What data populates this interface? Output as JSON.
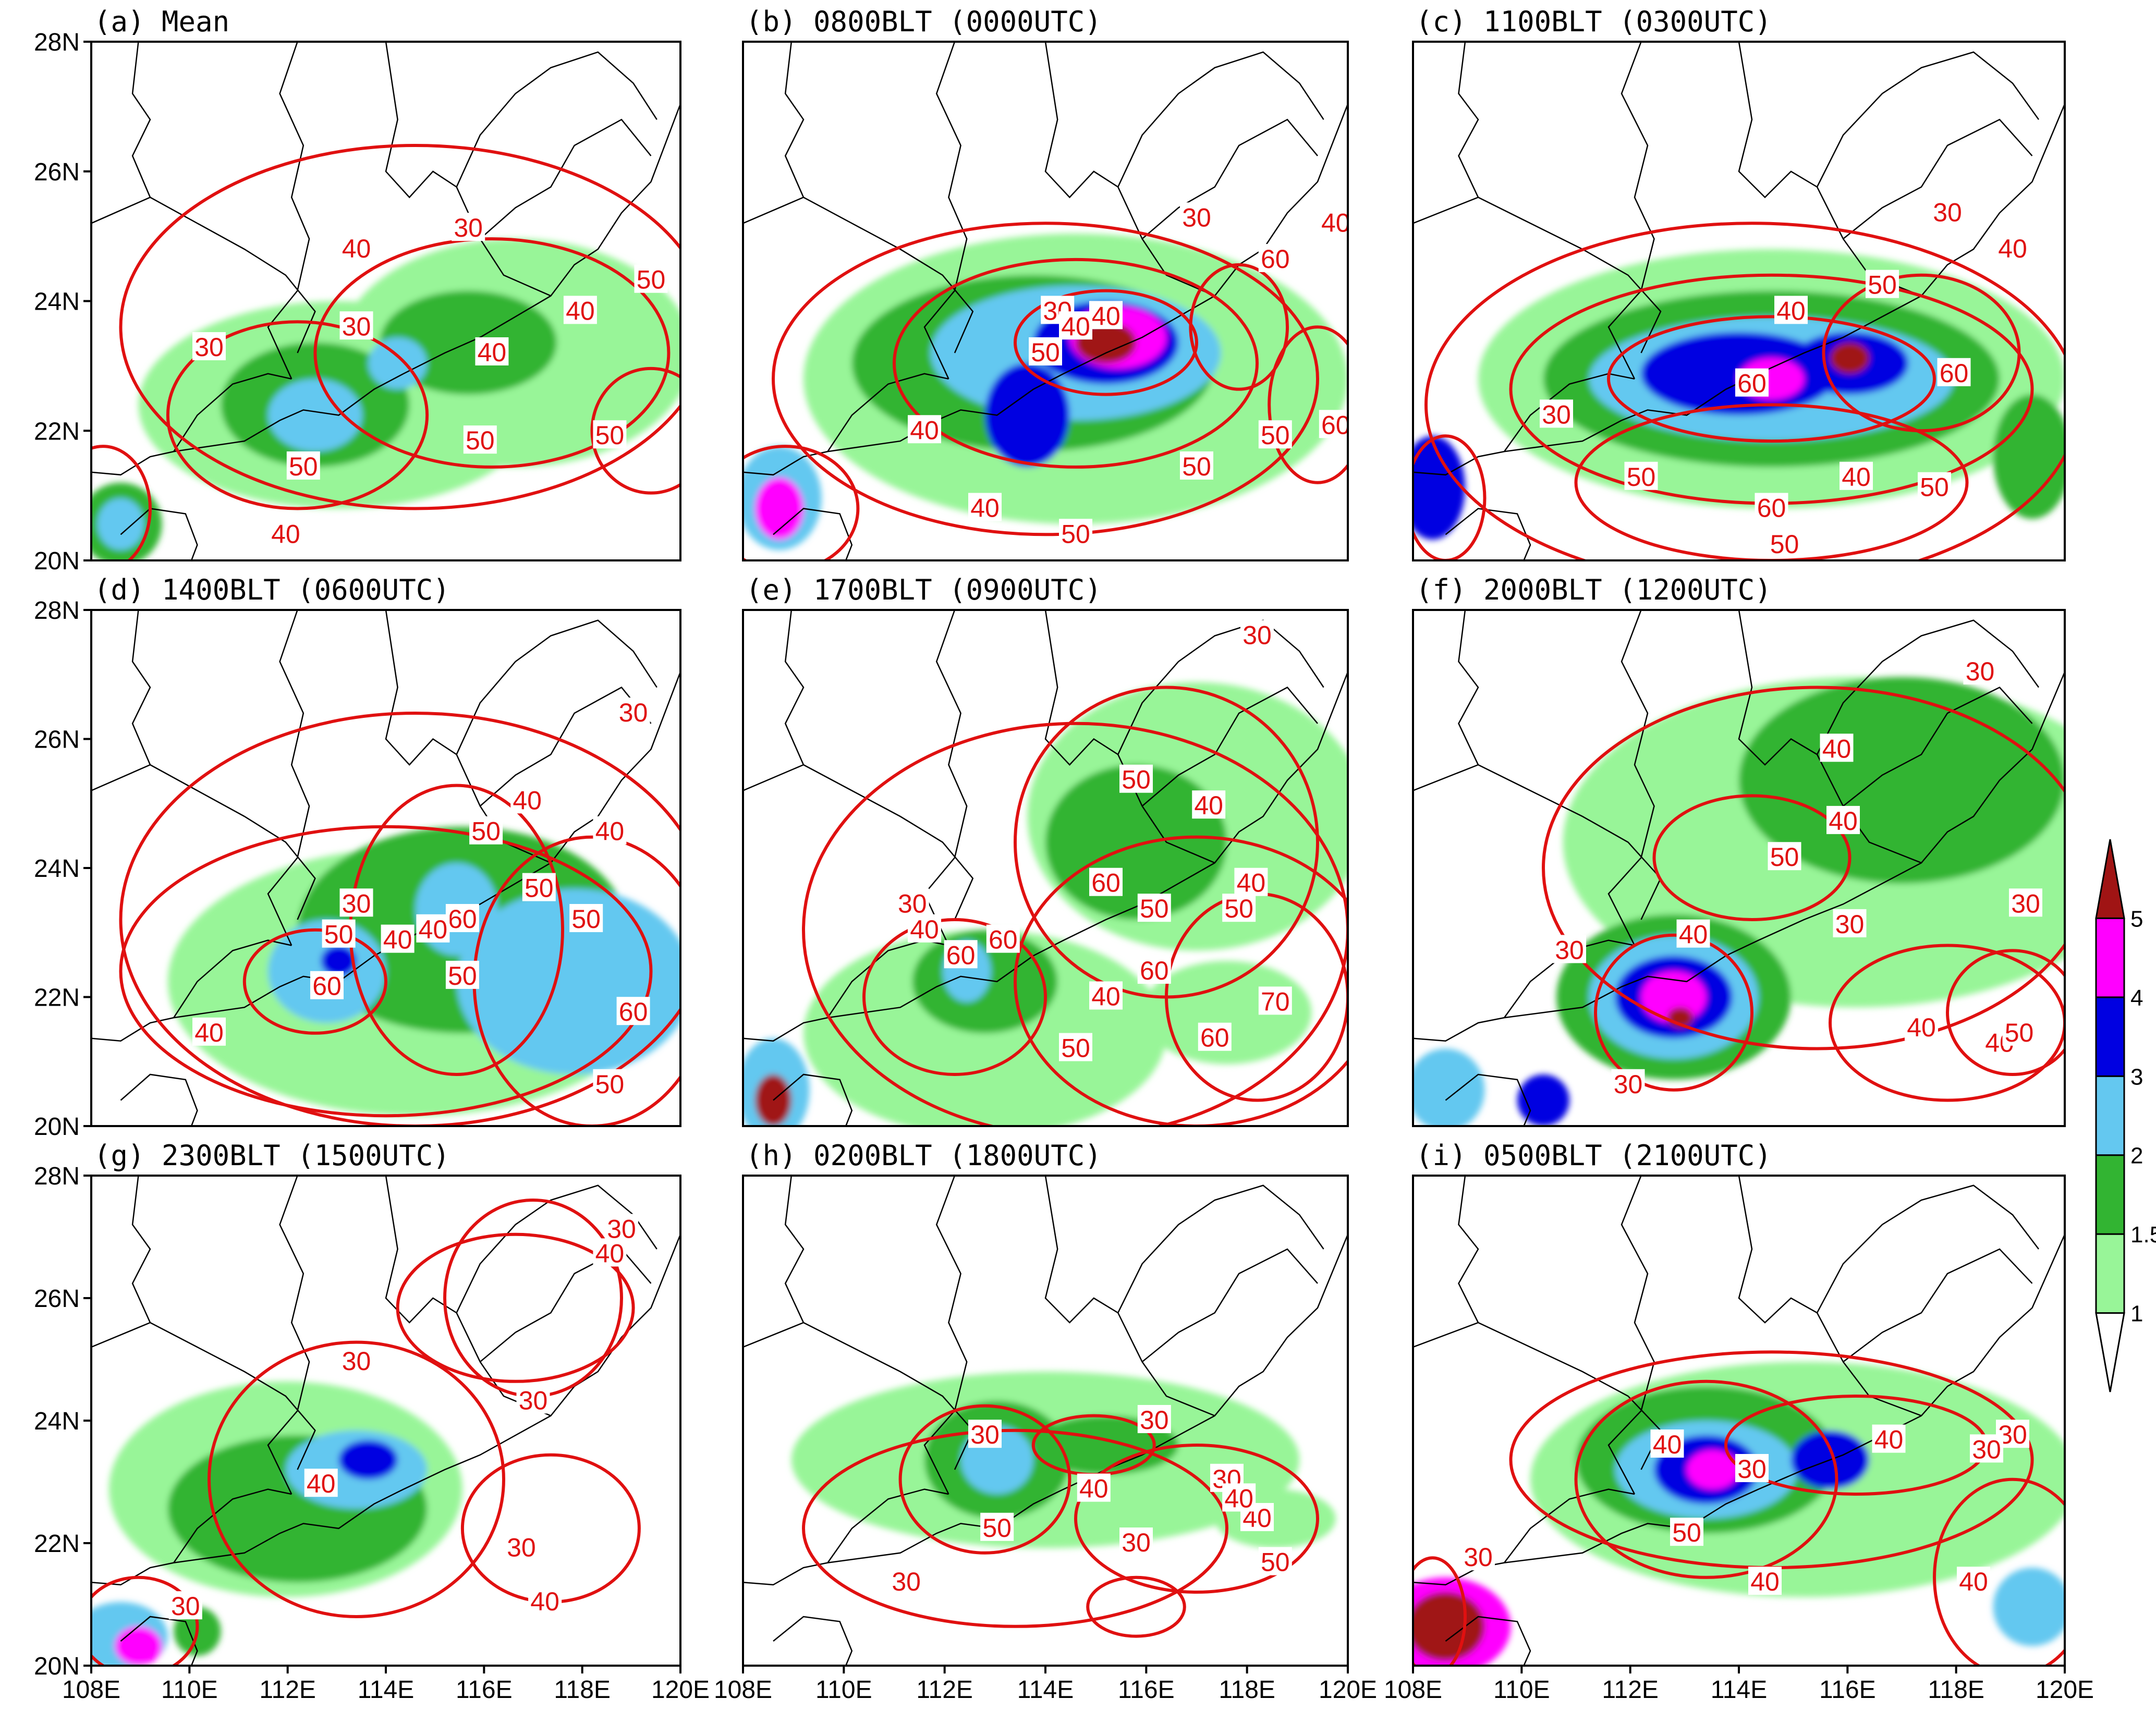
{
  "panels": [
    {
      "title": "(a) Mean",
      "labels": [
        "30",
        "30",
        "30",
        "40",
        "40",
        "40",
        "40",
        "50",
        "50",
        "50",
        "50"
      ]
    },
    {
      "title": "(b) 0800BLT (0000UTC)",
      "labels": [
        "30",
        "30",
        "40",
        "40",
        "40",
        "50",
        "50",
        "60",
        "50",
        "60",
        "40",
        "50",
        "40"
      ]
    },
    {
      "title": "(c) 1100BLT (0300UTC)",
      "labels": [
        "30",
        "30",
        "40",
        "40",
        "50",
        "50",
        "60",
        "60",
        "40",
        "50",
        "60",
        "50"
      ]
    },
    {
      "title": "(d) 1400BLT (0600UTC)",
      "labels": [
        "30",
        "30",
        "40",
        "40",
        "40",
        "40",
        "50",
        "50",
        "50",
        "60",
        "60",
        "50",
        "50",
        "60",
        "40",
        "50"
      ]
    },
    {
      "title": "(e) 1700BLT (0900UTC)",
      "labels": [
        "30",
        "30",
        "40",
        "40",
        "50",
        "60",
        "40",
        "60",
        "50",
        "60",
        "40",
        "50",
        "60",
        "70",
        "60",
        "50"
      ]
    },
    {
      "title": "(f) 2000BLT (1200UTC)",
      "labels": [
        "30",
        "40",
        "40",
        "50",
        "30",
        "40",
        "30",
        "30",
        "40",
        "40",
        "50",
        "30"
      ]
    },
    {
      "title": "(g) 2300BLT (1500UTC)",
      "labels": [
        "30",
        "40",
        "30",
        "30",
        "40",
        "30",
        "30",
        "40"
      ]
    },
    {
      "title": "(h) 0200BLT (1800UTC)",
      "labels": [
        "30",
        "30",
        "40",
        "30",
        "40",
        "50",
        "30",
        "30",
        "40",
        "50"
      ]
    },
    {
      "title": "(i) 0500BLT (2100UTC)",
      "labels": [
        "30",
        "40",
        "30",
        "40",
        "30",
        "50",
        "40",
        "40",
        "30"
      ]
    }
  ],
  "axes": {
    "lat_ticks": [
      "28N",
      "26N",
      "24N",
      "22N",
      "20N"
    ],
    "lon_ticks": [
      "108E",
      "110E",
      "112E",
      "114E",
      "116E",
      "118E",
      "120E"
    ]
  },
  "colorbar": {
    "levels": [
      "1",
      "1.5",
      "2",
      "3",
      "4",
      "5"
    ],
    "colors": [
      "#ffffff",
      "#98f598",
      "#32b432",
      "#64c8f0",
      "#0000e1",
      "#ff00ff",
      "#a01414"
    ]
  },
  "colors": {
    "contour": "#e01010",
    "map": "#000000"
  }
}
